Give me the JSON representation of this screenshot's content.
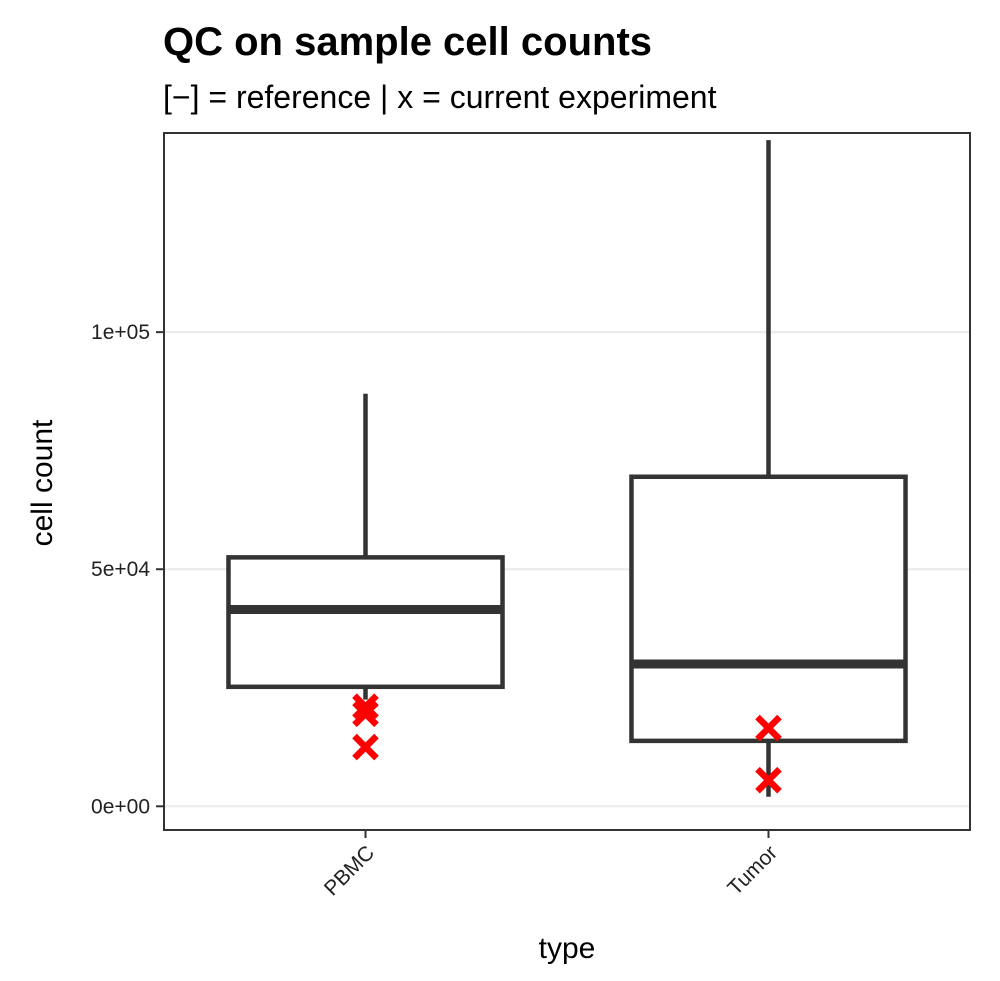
{
  "chart_data": {
    "type": "boxplot",
    "title": "QC on sample cell counts",
    "subtitle": "[−] = reference | x = current experiment",
    "xlabel": "type",
    "ylabel": "cell count",
    "categories": [
      "PBMC",
      "Tumor"
    ],
    "ylim": [
      -5000,
      142000
    ],
    "y_ticks": [
      0,
      50000,
      100000
    ],
    "y_tick_labels": [
      "0e+00",
      "5e+04",
      "1e+05"
    ],
    "grid": "horizontal major",
    "boxes": [
      {
        "category": "PBMC",
        "lower_whisker": 22500,
        "q1": 25200,
        "median": 41500,
        "q3": 52500,
        "upper_whisker": 87000
      },
      {
        "category": "Tumor",
        "lower_whisker": 2000,
        "q1": 13800,
        "median": 30000,
        "q3": 69500,
        "upper_whisker": 140500
      }
    ],
    "points": [
      {
        "category": "PBMC",
        "values": [
          21000,
          19500,
          12500
        ]
      },
      {
        "category": "Tumor",
        "values": [
          16500,
          5500
        ]
      }
    ],
    "colors": {
      "box": "#333333",
      "point": "#ff0000",
      "grid": "#ebebeb",
      "panel_border": "#333333"
    }
  }
}
